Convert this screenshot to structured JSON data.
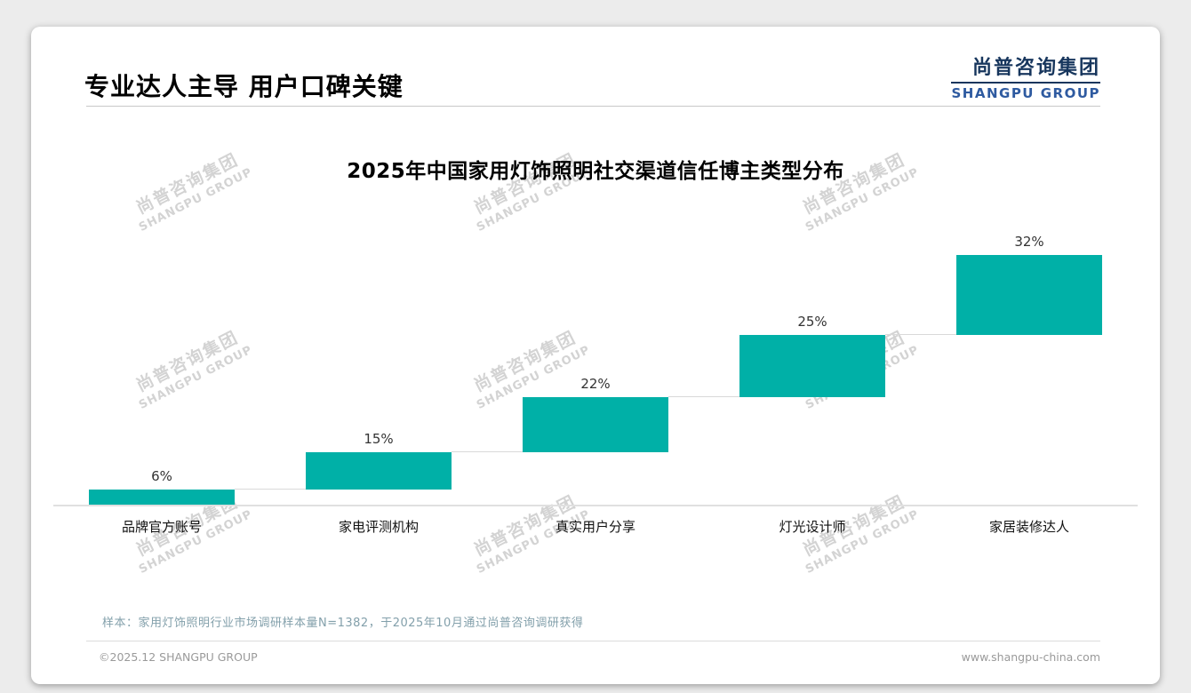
{
  "header": {
    "title": "专业达人主导 用户口碑关键"
  },
  "logo": {
    "cn": "尚普咨询集团",
    "en": "SHANGPU GROUP"
  },
  "watermark": {
    "cn": "尚普咨询集团",
    "en": "SHANGPU GROUP"
  },
  "chart_data": {
    "type": "bar",
    "subtype": "waterfall-staircase",
    "title": "2025年中国家用灯饰照明社交渠道信任博主类型分布",
    "categories": [
      "品牌官方账号",
      "家电评测机构",
      "真实用户分享",
      "灯光设计师",
      "家居装修达人"
    ],
    "values": [
      6,
      15,
      22,
      25,
      32
    ],
    "value_labels": [
      "6%",
      "15%",
      "22%",
      "25%",
      "32%"
    ],
    "cumulative": [
      6,
      21,
      43,
      68,
      100
    ],
    "unit": "%",
    "ylim": [
      0,
      100
    ],
    "grid": false,
    "legend": false,
    "bar_color": "#00b0a7",
    "axis_line_color": "#e0e0e0"
  },
  "note": "样本：家用灯饰照明行业市场调研样本量N=1382，于2025年10月通过尚普咨询调研获得",
  "footer": {
    "left": "©2025.12 SHANGPU GROUP",
    "right": "www.shangpu-china.com"
  }
}
